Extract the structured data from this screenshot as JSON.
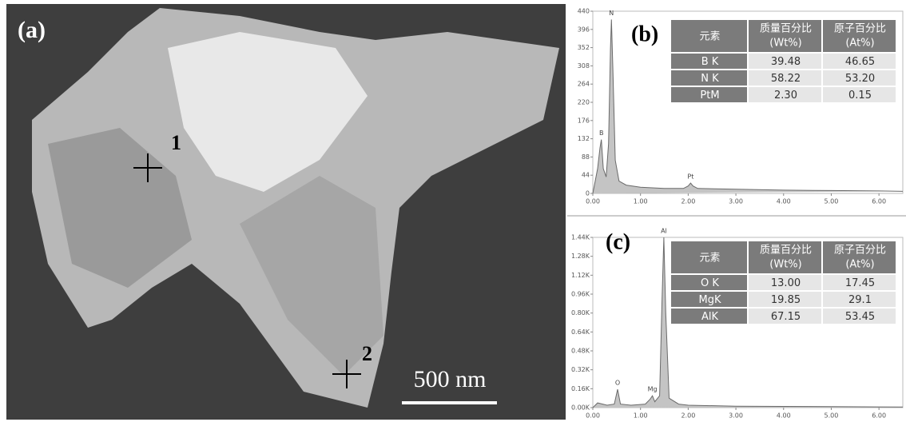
{
  "sem": {
    "label": "(a)",
    "markers": [
      "1",
      "2"
    ],
    "scale_bar": "500 nm"
  },
  "chart_data": [
    {
      "type": "line",
      "label": "(b)",
      "x": [
        0,
        0.05,
        0.1,
        0.15,
        0.18,
        0.22,
        0.28,
        0.33,
        0.37,
        0.39,
        0.42,
        0.47,
        0.55,
        0.7,
        1.0,
        1.5,
        1.9,
        2.0,
        2.05,
        2.1,
        2.2,
        3,
        4,
        5,
        6,
        6.5
      ],
      "values": [
        0,
        30,
        60,
        110,
        130,
        60,
        40,
        120,
        350,
        420,
        300,
        80,
        30,
        20,
        15,
        12,
        12,
        18,
        25,
        18,
        12,
        10,
        8,
        7,
        6,
        5
      ],
      "xlim": [
        0,
        6.5
      ],
      "ylim": [
        0,
        440
      ],
      "xticks": [
        {
          "value": 0,
          "label": "0.00"
        },
        {
          "value": 1,
          "label": "1.00"
        },
        {
          "value": 2,
          "label": "2.00"
        },
        {
          "value": 3,
          "label": "3.00"
        },
        {
          "value": 4,
          "label": "4.00"
        },
        {
          "value": 5,
          "label": "5.00"
        },
        {
          "value": 6,
          "label": "6.00"
        }
      ],
      "yticks": [
        0,
        44,
        88,
        132,
        176,
        220,
        264,
        308,
        352,
        396,
        440
      ],
      "annotations": [
        {
          "text": "B",
          "x": 0.18,
          "y": 130
        },
        {
          "text": "N",
          "x": 0.39,
          "y": 420
        },
        {
          "text": "Pt",
          "x": 2.05,
          "y": 25
        }
      ],
      "table": {
        "header": [
          [
            "元素"
          ],
          [
            "质量百分比",
            "(Wt%)"
          ],
          [
            "原子百分比",
            "(At%)"
          ]
        ],
        "rows": [
          [
            "B K",
            "39.48",
            "46.65"
          ],
          [
            "N K",
            "58.22",
            "53.20"
          ],
          [
            "PtM",
            "2.30",
            "0.15"
          ]
        ]
      }
    },
    {
      "type": "line",
      "label": "(c)",
      "x": [
        0,
        0.1,
        0.3,
        0.45,
        0.52,
        0.58,
        0.8,
        1.1,
        1.2,
        1.25,
        1.3,
        1.4,
        1.45,
        1.49,
        1.53,
        1.6,
        1.8,
        2,
        3,
        4,
        5,
        6,
        6.5
      ],
      "values": [
        0,
        40,
        20,
        30,
        155,
        30,
        20,
        30,
        70,
        100,
        50,
        100,
        900,
        1440,
        800,
        80,
        30,
        20,
        12,
        10,
        8,
        6,
        5
      ],
      "xlim": [
        0,
        6.5
      ],
      "ylim": [
        0,
        1440
      ],
      "xticks": [
        {
          "value": 0,
          "label": "0.00"
        },
        {
          "value": 1,
          "label": "1.00"
        },
        {
          "value": 2,
          "label": "2.00"
        },
        {
          "value": 3,
          "label": "3.00"
        },
        {
          "value": 4,
          "label": "4.00"
        },
        {
          "value": 5,
          "label": "5.00"
        },
        {
          "value": 6,
          "label": "6.00"
        }
      ],
      "yticks": [
        {
          "value": 0,
          "label": "0.00K"
        },
        {
          "value": 160,
          "label": "0.16K"
        },
        {
          "value": 320,
          "label": "0.32K"
        },
        {
          "value": 480,
          "label": "0.48K"
        },
        {
          "value": 640,
          "label": "0.64K"
        },
        {
          "value": 800,
          "label": "0.80K"
        },
        {
          "value": 960,
          "label": "0.96K"
        },
        {
          "value": 1120,
          "label": "1.12K"
        },
        {
          "value": 1280,
          "label": "1.28K"
        },
        {
          "value": 1440,
          "label": "1.44K"
        }
      ],
      "annotations": [
        {
          "text": "O",
          "x": 0.52,
          "y": 155
        },
        {
          "text": "Mg",
          "x": 1.25,
          "y": 100
        },
        {
          "text": "Al",
          "x": 1.49,
          "y": 1440
        }
      ],
      "table": {
        "header": [
          [
            "元素"
          ],
          [
            "质量百分比",
            "(Wt%)"
          ],
          [
            "原子百分比",
            "(At%)"
          ]
        ],
        "rows": [
          [
            "O K",
            "13.00",
            "17.45"
          ],
          [
            "MgK",
            "19.85",
            "29.1"
          ],
          [
            "AlK",
            "67.15",
            "53.45"
          ]
        ]
      }
    }
  ]
}
